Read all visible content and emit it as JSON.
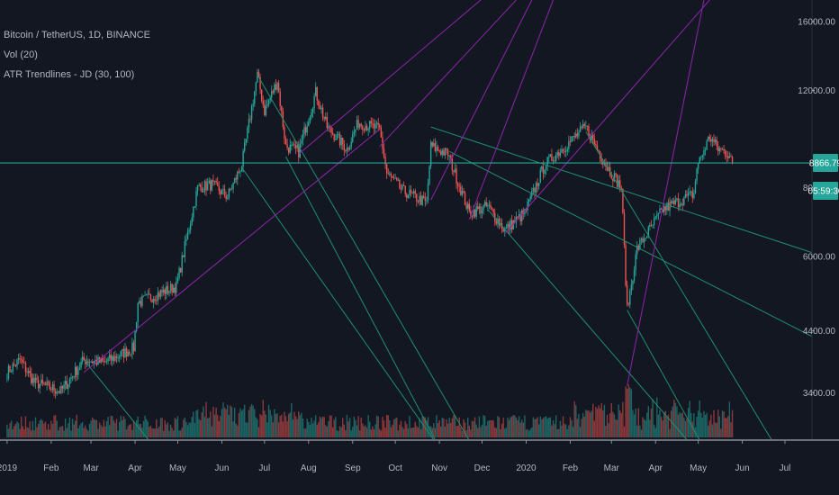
{
  "legend": {
    "symbol": "Bitcoin / TetherUS, 1D, BINANCE",
    "volume": "Vol (20)",
    "indicator": "ATR Trendlines - JD (30, 100)"
  },
  "colors": {
    "background": "#131722",
    "up": "#26a69a",
    "down": "#ef5350",
    "trend_down": "#1f8f6f",
    "trend_up": "#8e24aa",
    "price_line": "#26a69a",
    "axis_text": "#b2b5be",
    "axis_line": "#8a8d96"
  },
  "chart_data": {
    "type": "candlestick",
    "title": "Bitcoin / TetherUS, 1D, BINANCE",
    "y_axis": {
      "scale": "log",
      "ticks": [
        3400,
        4400,
        6000,
        8000,
        12000,
        16000
      ],
      "tick_labels": [
        "3400.00",
        "4400.00",
        "6000.00",
        "8000.00",
        "12000.00",
        "16000.00"
      ],
      "range": [
        2800,
        17500
      ]
    },
    "x_axis": {
      "tick_labels": [
        "2019",
        "Feb",
        "Mar",
        "Apr",
        "May",
        "Jun",
        "Jul",
        "Aug",
        "Sep",
        "Oct",
        "Nov",
        "Dec",
        "2020",
        "Feb",
        "Mar",
        "Apr",
        "May",
        "Jun",
        "Jul"
      ],
      "tick_dates": [
        "2019-01-01",
        "2019-02-01",
        "2019-03-01",
        "2019-04-01",
        "2019-05-01",
        "2019-06-01",
        "2019-07-01",
        "2019-08-01",
        "2019-09-01",
        "2019-10-01",
        "2019-11-01",
        "2019-12-01",
        "2020-01-01",
        "2020-02-01",
        "2020-03-01",
        "2020-04-01",
        "2020-05-01",
        "2020-06-01",
        "2020-07-01"
      ],
      "range": [
        "2018-12-27",
        "2020-07-20"
      ]
    },
    "price_keypoints": [
      [
        "2019-01-01",
        3700
      ],
      [
        "2019-01-10",
        3900
      ],
      [
        "2019-01-20",
        3550
      ],
      [
        "2019-02-08",
        3420
      ],
      [
        "2019-02-24",
        3900
      ],
      [
        "2019-03-10",
        3850
      ],
      [
        "2019-03-31",
        4100
      ],
      [
        "2019-04-03",
        4950
      ],
      [
        "2019-04-30",
        5300
      ],
      [
        "2019-05-15",
        8000
      ],
      [
        "2019-05-25",
        8100
      ],
      [
        "2019-06-05",
        7700
      ],
      [
        "2019-06-15",
        8800
      ],
      [
        "2019-06-26",
        12800
      ],
      [
        "2019-07-01",
        11000
      ],
      [
        "2019-07-10",
        12500
      ],
      [
        "2019-07-16",
        9500
      ],
      [
        "2019-07-25",
        9300
      ],
      [
        "2019-08-06",
        11900
      ],
      [
        "2019-08-14",
        10300
      ],
      [
        "2019-08-28",
        9400
      ],
      [
        "2019-09-05",
        10500
      ],
      [
        "2019-09-20",
        10200
      ],
      [
        "2019-09-25",
        8500
      ],
      [
        "2019-10-06",
        7900
      ],
      [
        "2019-10-23",
        7500
      ],
      [
        "2019-10-26",
        9500
      ],
      [
        "2019-11-07",
        9200
      ],
      [
        "2019-11-22",
        7200
      ],
      [
        "2019-12-05",
        7400
      ],
      [
        "2019-12-17",
        6700
      ],
      [
        "2019-12-31",
        7200
      ],
      [
        "2020-01-14",
        8800
      ],
      [
        "2020-02-12",
        10300
      ],
      [
        "2020-02-26",
        8800
      ],
      [
        "2020-03-08",
        8000
      ],
      [
        "2020-03-12",
        4800
      ],
      [
        "2020-03-19",
        6200
      ],
      [
        "2020-04-06",
        7300
      ],
      [
        "2020-04-28",
        7800
      ],
      [
        "2020-04-30",
        8700
      ],
      [
        "2020-05-09",
        9900
      ],
      [
        "2020-05-15",
        9400
      ],
      [
        "2020-05-23",
        9200
      ],
      [
        "2020-05-25",
        8866.79
      ]
    ],
    "volume_scale_note": "relative",
    "trendlines_down": [
      [
        [
          "2019-02-24",
          3900
        ],
        [
          "2019-04-15",
          2700
        ]
      ],
      [
        [
          "2019-06-15",
          8700
        ],
        [
          "2019-11-01",
          2700
        ]
      ],
      [
        [
          "2019-06-26",
          12800
        ],
        [
          "2019-11-25",
          2700
        ]
      ],
      [
        [
          "2019-07-16",
          9100
        ],
        [
          "2019-11-01",
          2700
        ]
      ],
      [
        [
          "2019-10-26",
          10300
        ],
        [
          "2020-07-20",
          6100
        ]
      ],
      [
        [
          "2019-11-08",
          9300
        ],
        [
          "2020-07-20",
          4300
        ]
      ],
      [
        [
          "2019-12-05",
          7300
        ],
        [
          "2020-04-28",
          2700
        ]
      ],
      [
        [
          "2020-02-12",
          10100
        ],
        [
          "2020-06-25",
          2700
        ]
      ],
      [
        [
          "2020-03-12",
          4800
        ],
        [
          "2020-05-05",
          2700
        ]
      ]
    ],
    "trendlines_up": [
      [
        [
          "2019-02-24",
          3700
        ],
        [
          "2019-09-20",
          10200
        ]
      ],
      [
        [
          "2019-07-25",
          9200
        ],
        [
          "2019-11-30",
          17500
        ]
      ],
      [
        [
          "2019-09-20",
          9500
        ],
        [
          "2019-12-25",
          17500
        ]
      ],
      [
        [
          "2019-10-26",
          7600
        ],
        [
          "2020-01-05",
          17500
        ]
      ],
      [
        [
          "2019-11-22",
          7000
        ],
        [
          "2020-01-20",
          17500
        ]
      ],
      [
        [
          "2019-12-17",
          6600
        ],
        [
          "2020-05-09",
          17500
        ]
      ],
      [
        [
          "2020-03-12",
          3500
        ],
        [
          "2020-05-05",
          17500
        ]
      ]
    ],
    "price_line": 8866.79,
    "last_price_label": "8866.79",
    "countdown_label": "05:59:30"
  }
}
